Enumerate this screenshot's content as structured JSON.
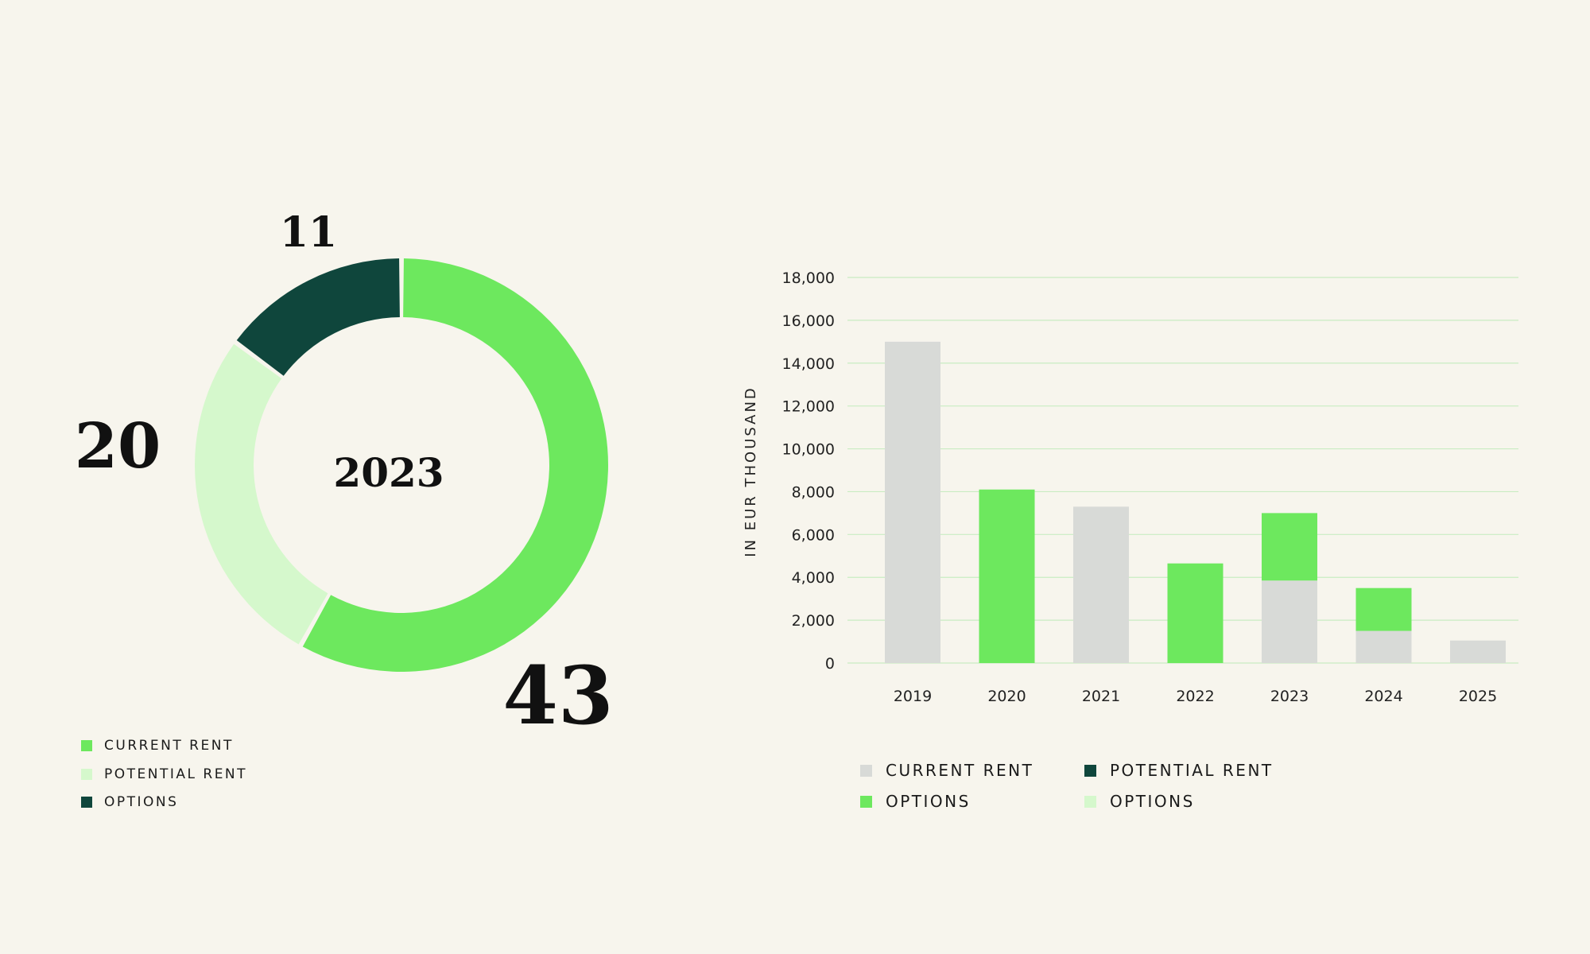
{
  "colors": {
    "background": "#f7f5ed",
    "current_rent_green": "#6de85e",
    "potential_rent_light": "#d5f8cc",
    "options_dark": "#0f463c",
    "bar_grey": "#d8dad7",
    "gridline": "#c9ecc2"
  },
  "chart_data": [
    {
      "type": "pie",
      "style": "donut",
      "center_label": "2023",
      "slices": [
        {
          "label": "CURRENT RENT",
          "value": 43,
          "display": "43",
          "color": "#6de85e"
        },
        {
          "label": "POTENTIAL RENT",
          "value": 20,
          "display": "20",
          "color": "#d5f8cc"
        },
        {
          "label": "OPTIONS",
          "value": 11,
          "display": "11",
          "color": "#0f463c"
        }
      ],
      "legend": [
        {
          "label": "CURRENT RENT",
          "color": "#6de85e"
        },
        {
          "label": "POTENTIAL RENT",
          "color": "#d5f8cc"
        },
        {
          "label": "OPTIONS",
          "color": "#0f463c"
        }
      ],
      "legend_position": "bottom-left"
    },
    {
      "type": "bar",
      "stacked": true,
      "categories": [
        "2019",
        "2020",
        "2021",
        "2022",
        "2023",
        "2024",
        "2025"
      ],
      "series": [
        {
          "name": "CURRENT RENT",
          "color": "#d8dad7",
          "values": [
            15000,
            0,
            7300,
            0,
            3850,
            1500,
            1050
          ]
        },
        {
          "name": "OPTIONS",
          "color": "#6de85e",
          "values": [
            0,
            8100,
            0,
            4650,
            3150,
            2000,
            0
          ]
        }
      ],
      "ylabel": "IN EUR THOUSAND",
      "ylim": [
        0,
        18000
      ],
      "yticks": [
        0,
        2000,
        4000,
        6000,
        8000,
        10000,
        12000,
        14000,
        16000,
        18000
      ],
      "ytick_labels": [
        "0",
        "2,000",
        "4,000",
        "6,000",
        "8,000",
        "10,000",
        "12,000",
        "14,000",
        "16,000",
        "18,000"
      ],
      "grid": true,
      "legend": [
        {
          "label": "CURRENT RENT",
          "color": "#d8dad7"
        },
        {
          "label": "POTENTIAL RENT",
          "color": "#0f463c"
        },
        {
          "label": "OPTIONS",
          "color": "#6de85e"
        },
        {
          "label": "OPTIONS",
          "color": "#d5f8cc"
        }
      ],
      "legend_position": "bottom"
    }
  ]
}
